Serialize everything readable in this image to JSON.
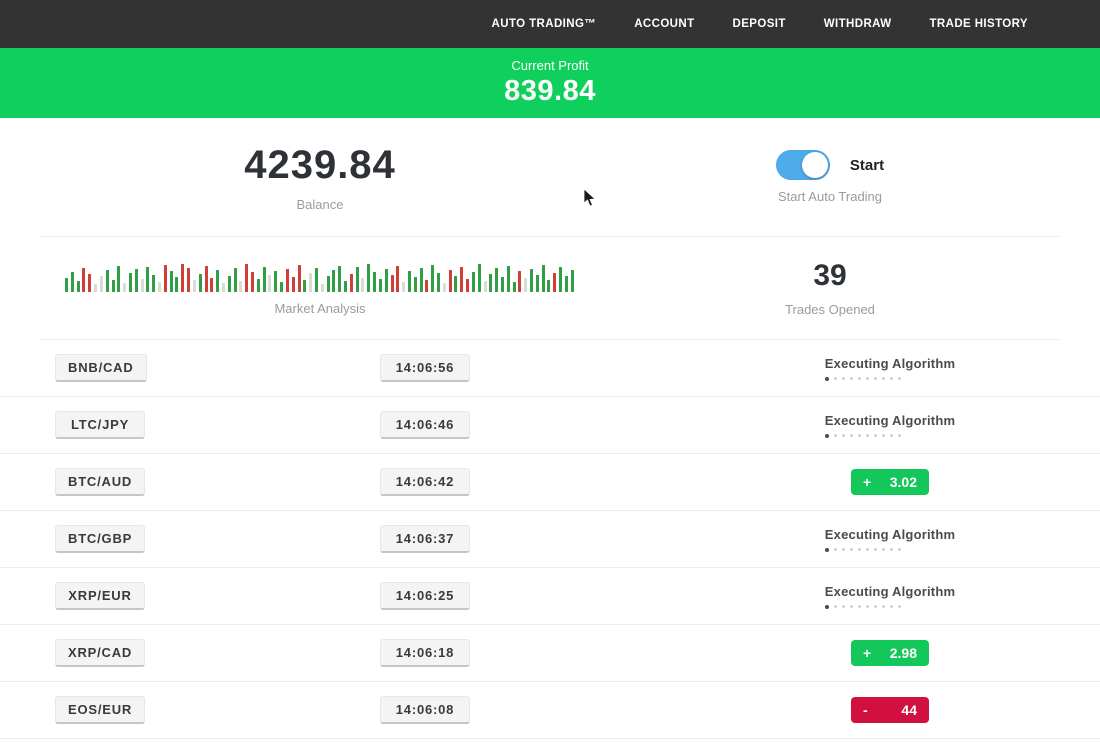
{
  "navbar": {
    "items": [
      {
        "label": "AUTO TRADING™"
      },
      {
        "label": "ACCOUNT"
      },
      {
        "label": "DEPOSIT"
      },
      {
        "label": "WITHDRAW"
      },
      {
        "label": "TRADE HISTORY"
      }
    ]
  },
  "profit_banner": {
    "label": "Current Profit",
    "value": "839.84",
    "bg_color": "#0fd05c"
  },
  "stats": {
    "balance_value": "4239.84",
    "balance_label": "Balance",
    "toggle_label": "Start",
    "toggle_state": "on",
    "toggle_color": "#4fabea",
    "auto_trading_label": "Start Auto Trading",
    "trades_opened_value": "39",
    "trades_opened_label": "Trades Opened",
    "market_analysis_label": "Market Analysis"
  },
  "chart_data": {
    "type": "bar",
    "title": "Market Analysis",
    "xlabel": "",
    "ylabel": "",
    "palette": {
      "g": "#2f9e44",
      "r": "#cf3f35",
      "p": "#d8dcd8"
    },
    "bars": [
      [
        14,
        "g"
      ],
      [
        20,
        "g"
      ],
      [
        11,
        "g"
      ],
      [
        24,
        "r"
      ],
      [
        18,
        "r"
      ],
      [
        8,
        "p"
      ],
      [
        16,
        "p"
      ],
      [
        22,
        "g"
      ],
      [
        12,
        "g"
      ],
      [
        26,
        "g"
      ],
      [
        9,
        "p"
      ],
      [
        19,
        "g"
      ],
      [
        23,
        "g"
      ],
      [
        13,
        "p"
      ],
      [
        25,
        "g"
      ],
      [
        17,
        "g"
      ],
      [
        10,
        "p"
      ],
      [
        27,
        "r"
      ],
      [
        21,
        "g"
      ],
      [
        15,
        "g"
      ],
      [
        28,
        "r"
      ],
      [
        24,
        "r"
      ],
      [
        12,
        "p"
      ],
      [
        18,
        "g"
      ],
      [
        26,
        "r"
      ],
      [
        14,
        "r"
      ],
      [
        22,
        "g"
      ],
      [
        9,
        "p"
      ],
      [
        16,
        "g"
      ],
      [
        24,
        "g"
      ],
      [
        11,
        "p"
      ],
      [
        28,
        "r"
      ],
      [
        20,
        "r"
      ],
      [
        13,
        "g"
      ],
      [
        25,
        "g"
      ],
      [
        17,
        "p"
      ],
      [
        21,
        "g"
      ],
      [
        10,
        "g"
      ],
      [
        23,
        "r"
      ],
      [
        15,
        "r"
      ],
      [
        27,
        "r"
      ],
      [
        12,
        "g"
      ],
      [
        19,
        "p"
      ],
      [
        24,
        "g"
      ],
      [
        8,
        "p"
      ],
      [
        16,
        "g"
      ],
      [
        22,
        "g"
      ],
      [
        26,
        "g"
      ],
      [
        11,
        "g"
      ],
      [
        18,
        "r"
      ],
      [
        25,
        "g"
      ],
      [
        14,
        "p"
      ],
      [
        28,
        "g"
      ],
      [
        20,
        "g"
      ],
      [
        13,
        "g"
      ],
      [
        23,
        "g"
      ],
      [
        17,
        "r"
      ],
      [
        26,
        "r"
      ],
      [
        10,
        "p"
      ],
      [
        21,
        "g"
      ],
      [
        15,
        "g"
      ],
      [
        24,
        "g"
      ],
      [
        12,
        "r"
      ],
      [
        27,
        "g"
      ],
      [
        19,
        "g"
      ],
      [
        9,
        "p"
      ],
      [
        22,
        "r"
      ],
      [
        16,
        "g"
      ],
      [
        25,
        "r"
      ],
      [
        13,
        "r"
      ],
      [
        20,
        "g"
      ],
      [
        28,
        "g"
      ],
      [
        11,
        "p"
      ],
      [
        18,
        "g"
      ],
      [
        24,
        "g"
      ],
      [
        15,
        "g"
      ],
      [
        26,
        "g"
      ],
      [
        10,
        "g"
      ],
      [
        21,
        "r"
      ],
      [
        14,
        "p"
      ],
      [
        23,
        "g"
      ],
      [
        17,
        "g"
      ],
      [
        27,
        "g"
      ],
      [
        12,
        "g"
      ],
      [
        19,
        "r"
      ],
      [
        25,
        "g"
      ],
      [
        16,
        "g"
      ],
      [
        22,
        "g"
      ]
    ]
  },
  "trades": [
    {
      "pair": "BNB/CAD",
      "time": "14:06:56",
      "status": "executing",
      "status_label": "Executing Algorithm"
    },
    {
      "pair": "LTC/JPY",
      "time": "14:06:46",
      "status": "executing",
      "status_label": "Executing Algorithm"
    },
    {
      "pair": "BTC/AUD",
      "time": "14:06:42",
      "status": "profit",
      "sign": "+",
      "value": "3.02"
    },
    {
      "pair": "BTC/GBP",
      "time": "14:06:37",
      "status": "executing",
      "status_label": "Executing Algorithm"
    },
    {
      "pair": "XRP/EUR",
      "time": "14:06:25",
      "status": "executing",
      "status_label": "Executing Algorithm"
    },
    {
      "pair": "XRP/CAD",
      "time": "14:06:18",
      "status": "profit",
      "sign": "+",
      "value": "2.98"
    },
    {
      "pair": "EOS/EUR",
      "time": "14:06:08",
      "status": "loss",
      "sign": "-",
      "value": "44"
    }
  ],
  "status_colors": {
    "profit": "#14c75a",
    "loss": "#d2103f"
  },
  "progress_dots_count": 10
}
